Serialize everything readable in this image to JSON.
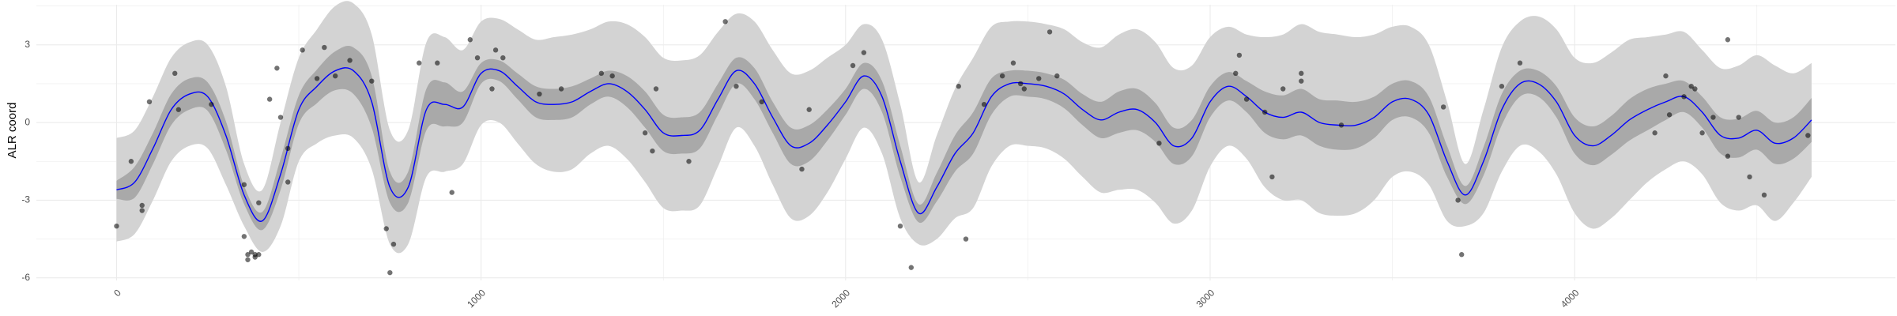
{
  "chart_data": {
    "type": "line",
    "title": "",
    "xlabel": "",
    "ylabel": "ALR coord",
    "xlim": [
      -220,
      4880
    ],
    "ylim": [
      -6.1,
      4.55
    ],
    "grid": true,
    "legend": "none",
    "x_ticks": [
      {
        "value": 0,
        "label": "0"
      },
      {
        "value": 1000,
        "label": "1000"
      },
      {
        "value": 2000,
        "label": "2000"
      },
      {
        "value": 3000,
        "label": "3000"
      },
      {
        "value": 4000,
        "label": "4000"
      }
    ],
    "y_ticks": [
      {
        "value": 3,
        "label": "3"
      },
      {
        "value": 0,
        "label": "0"
      },
      {
        "value": -3,
        "label": "-3"
      },
      {
        "value": -6,
        "label": "-6"
      }
    ],
    "colors": {
      "mean_line": "#0000ff",
      "inner_band": "#a9a9a9",
      "outer_band": "#d3d3d3",
      "points": "#000000",
      "grid": "#ebebeb"
    },
    "series": [
      {
        "kind": "line",
        "x": [
          0,
          50,
          100,
          150,
          200,
          250,
          300,
          350,
          400,
          450,
          500,
          550,
          600,
          650,
          700,
          750,
          800,
          850,
          900,
          950,
          1000,
          1050,
          1100,
          1150,
          1200,
          1250,
          1300,
          1350,
          1400,
          1450,
          1500,
          1550,
          1600,
          1650,
          1700,
          1750,
          1800,
          1850,
          1900,
          1950,
          2000,
          2050,
          2100,
          2150,
          2200,
          2250,
          2300,
          2350,
          2400,
          2450,
          2500,
          2550,
          2600,
          2650,
          2700,
          2750,
          2800,
          2850,
          2900,
          2950,
          3000,
          3050,
          3100,
          3150,
          3200,
          3250,
          3300,
          3350,
          3400,
          3450,
          3500,
          3550,
          3600,
          3650,
          3700,
          3750,
          3800,
          3850,
          3900,
          3950,
          4000,
          4050,
          4100,
          4150,
          4200,
          4250,
          4300,
          4350,
          4400,
          4450,
          4500,
          4550,
          4600,
          4650
        ],
        "values": [
          -2.6,
          -2.3,
          -1.0,
          0.5,
          1.1,
          1.0,
          -0.5,
          -2.8,
          -3.8,
          -2.0,
          0.5,
          1.4,
          2.0,
          2.0,
          0.8,
          -2.5,
          -2.5,
          0.5,
          0.7,
          0.6,
          1.9,
          2.0,
          1.4,
          0.8,
          0.7,
          0.8,
          1.2,
          1.5,
          1.2,
          0.5,
          -0.4,
          -0.5,
          -0.3,
          0.9,
          2.0,
          1.5,
          0.2,
          -0.9,
          -0.8,
          -0.1,
          0.8,
          1.8,
          1.0,
          -1.5,
          -3.5,
          -2.5,
          -1.2,
          -0.4,
          1.0,
          1.5,
          1.5,
          1.4,
          1.1,
          0.5,
          0.1,
          0.4,
          0.5,
          0.0,
          -0.9,
          -0.6,
          0.8,
          1.4,
          1.0,
          0.4,
          0.2,
          0.4,
          0.0,
          -0.1,
          -0.1,
          0.2,
          0.8,
          0.9,
          0.3,
          -1.5,
          -2.8,
          -1.5,
          0.5,
          1.5,
          1.5,
          0.8,
          -0.5,
          -0.9,
          -0.5,
          0.1,
          0.5,
          0.8,
          1.0,
          0.4,
          -0.5,
          -0.6,
          -0.3,
          -0.8,
          -0.6,
          0.1
        ]
      },
      {
        "kind": "band",
        "name": "",
        "lower_offset": [
          -0.35,
          -0.6,
          -0.6,
          -0.6,
          -0.6,
          -0.55,
          -0.55,
          -0.35,
          -0.35,
          -0.6,
          -0.55,
          -0.65,
          -0.75,
          -0.9,
          -1.0,
          -0.6,
          -0.6,
          -0.8,
          -0.85,
          -0.6,
          -0.4,
          -0.4,
          -0.5,
          -0.6,
          -0.6,
          -0.6,
          -0.5,
          -0.5,
          -0.6,
          -0.7,
          -0.7,
          -0.7,
          -0.7,
          -0.6,
          -0.5,
          -0.6,
          -0.6,
          -0.7,
          -0.7,
          -0.6,
          -0.5,
          -0.5,
          -0.6,
          -0.6,
          -0.35,
          -0.55,
          -0.7,
          -0.8,
          -0.7,
          -0.5,
          -0.5,
          -0.5,
          -0.55,
          -0.6,
          -0.7,
          -0.8,
          -0.8,
          -0.75,
          -0.7,
          -0.7,
          -0.6,
          -0.55,
          -0.6,
          -0.8,
          -0.85,
          -0.9,
          -0.9,
          -0.95,
          -0.9,
          -0.8,
          -0.7,
          -0.7,
          -0.7,
          -0.6,
          -0.35,
          -0.55,
          -0.6,
          -0.5,
          -0.5,
          -0.6,
          -0.7,
          -0.75,
          -0.75,
          -0.8,
          -0.8,
          -0.7,
          -0.6,
          -0.6,
          -0.7,
          -0.75,
          -0.75,
          -0.8,
          -0.8,
          -0.85
        ],
        "upper_offset": [
          0.35,
          0.6,
          0.6,
          0.6,
          0.6,
          0.55,
          0.55,
          0.35,
          0.35,
          0.6,
          0.55,
          0.65,
          0.75,
          0.9,
          1.0,
          0.6,
          0.6,
          0.8,
          0.85,
          0.6,
          0.4,
          0.4,
          0.5,
          0.6,
          0.6,
          0.6,
          0.5,
          0.5,
          0.6,
          0.7,
          0.7,
          0.7,
          0.7,
          0.6,
          0.5,
          0.6,
          0.6,
          0.7,
          0.7,
          0.6,
          0.5,
          0.5,
          0.6,
          0.6,
          0.35,
          0.55,
          0.7,
          0.8,
          0.7,
          0.5,
          0.5,
          0.5,
          0.55,
          0.6,
          0.7,
          0.8,
          0.8,
          0.75,
          0.7,
          0.7,
          0.6,
          0.55,
          0.6,
          0.8,
          0.85,
          0.9,
          0.9,
          0.95,
          0.9,
          0.8,
          0.7,
          0.7,
          0.7,
          0.6,
          0.35,
          0.55,
          0.6,
          0.5,
          0.5,
          0.6,
          0.7,
          0.75,
          0.75,
          0.8,
          0.8,
          0.7,
          0.6,
          0.6,
          0.7,
          0.75,
          0.75,
          0.8,
          0.8,
          0.85
        ]
      },
      {
        "kind": "band",
        "name": "",
        "lower_offset": [
          -2.0,
          -2.0,
          -2.0,
          -2.0,
          -2.0,
          -2.0,
          -1.9,
          -1.2,
          -1.2,
          -2.0,
          -2.0,
          -2.2,
          -2.5,
          -2.6,
          -2.6,
          -2.2,
          -2.2,
          -2.6,
          -2.6,
          -2.2,
          -2.0,
          -2.0,
          -2.2,
          -2.4,
          -2.6,
          -2.6,
          -2.4,
          -2.4,
          -2.6,
          -2.8,
          -2.9,
          -2.9,
          -2.9,
          -2.6,
          -2.2,
          -2.4,
          -2.6,
          -2.8,
          -2.8,
          -2.6,
          -2.2,
          -2.0,
          -2.2,
          -2.2,
          -1.2,
          -2.0,
          -2.5,
          -2.9,
          -2.7,
          -2.4,
          -2.4,
          -2.4,
          -2.5,
          -2.6,
          -2.8,
          -3.0,
          -3.1,
          -3.1,
          -3.0,
          -2.8,
          -2.5,
          -2.3,
          -2.4,
          -2.9,
          -3.2,
          -3.4,
          -3.5,
          -3.5,
          -3.4,
          -3.2,
          -2.9,
          -2.8,
          -2.7,
          -2.3,
          -1.2,
          -2.0,
          -2.4,
          -2.4,
          -2.6,
          -2.8,
          -3.0,
          -3.2,
          -3.2,
          -3.1,
          -2.8,
          -2.6,
          -2.5,
          -2.4,
          -2.6,
          -2.8,
          -2.9,
          -3.0,
          -2.5,
          -2.2
        ],
        "upper_offset": [
          2.0,
          2.0,
          2.0,
          2.0,
          2.0,
          2.0,
          1.9,
          1.2,
          1.2,
          2.0,
          2.0,
          2.2,
          2.5,
          2.6,
          2.6,
          2.2,
          2.2,
          2.6,
          2.6,
          2.2,
          2.0,
          2.0,
          2.2,
          2.4,
          2.6,
          2.6,
          2.4,
          2.4,
          2.6,
          2.8,
          2.9,
          2.9,
          2.9,
          2.6,
          2.2,
          2.4,
          2.6,
          2.8,
          2.8,
          2.6,
          2.2,
          2.0,
          2.2,
          2.2,
          1.2,
          2.0,
          2.5,
          2.9,
          2.7,
          2.4,
          2.4,
          2.4,
          2.5,
          2.6,
          2.8,
          3.0,
          3.1,
          3.1,
          3.0,
          2.8,
          2.5,
          2.3,
          2.4,
          2.9,
          3.2,
          3.4,
          3.5,
          3.5,
          3.4,
          3.2,
          2.9,
          2.8,
          2.7,
          2.3,
          1.2,
          2.0,
          2.4,
          2.4,
          2.6,
          2.8,
          3.0,
          3.2,
          3.2,
          3.1,
          2.8,
          2.6,
          2.5,
          2.4,
          2.6,
          2.8,
          2.9,
          3.0,
          2.5,
          2.2
        ]
      },
      {
        "kind": "scatter",
        "points": [
          [
            0,
            -4.0
          ],
          [
            40,
            -1.5
          ],
          [
            70,
            -3.4
          ],
          [
            70,
            -3.2
          ],
          [
            90,
            0.8
          ],
          [
            160,
            1.9
          ],
          [
            170,
            0.5
          ],
          [
            260,
            0.7
          ],
          [
            350,
            -2.4
          ],
          [
            350,
            -4.4
          ],
          [
            360,
            -5.3
          ],
          [
            360,
            -5.1
          ],
          [
            370,
            -5.0
          ],
          [
            380,
            -5.2
          ],
          [
            380,
            -5.1
          ],
          [
            390,
            -5.1
          ],
          [
            390,
            -3.1
          ],
          [
            420,
            0.9
          ],
          [
            440,
            2.1
          ],
          [
            450,
            0.2
          ],
          [
            470,
            -1.0
          ],
          [
            470,
            -2.3
          ],
          [
            510,
            2.8
          ],
          [
            550,
            1.7
          ],
          [
            570,
            2.9
          ],
          [
            600,
            1.8
          ],
          [
            640,
            2.4
          ],
          [
            700,
            1.6
          ],
          [
            740,
            -4.1
          ],
          [
            750,
            -5.8
          ],
          [
            760,
            -4.7
          ],
          [
            830,
            2.3
          ],
          [
            880,
            2.3
          ],
          [
            920,
            -2.7
          ],
          [
            970,
            3.2
          ],
          [
            990,
            2.5
          ],
          [
            1030,
            1.3
          ],
          [
            1040,
            2.8
          ],
          [
            1060,
            2.5
          ],
          [
            1160,
            1.1
          ],
          [
            1220,
            1.3
          ],
          [
            1330,
            1.9
          ],
          [
            1360,
            1.8
          ],
          [
            1450,
            -0.4
          ],
          [
            1470,
            -1.1
          ],
          [
            1480,
            1.3
          ],
          [
            1570,
            -1.5
          ],
          [
            1670,
            3.9
          ],
          [
            1700,
            1.4
          ],
          [
            1770,
            0.8
          ],
          [
            1880,
            -1.8
          ],
          [
            1900,
            0.5
          ],
          [
            2020,
            2.2
          ],
          [
            2050,
            2.7
          ],
          [
            2150,
            -4.0
          ],
          [
            2180,
            -5.6
          ],
          [
            2310,
            1.4
          ],
          [
            2330,
            -4.5
          ],
          [
            2380,
            0.7
          ],
          [
            2430,
            1.8
          ],
          [
            2460,
            2.3
          ],
          [
            2480,
            1.5
          ],
          [
            2490,
            1.3
          ],
          [
            2530,
            1.7
          ],
          [
            2560,
            3.5
          ],
          [
            2580,
            1.8
          ],
          [
            2860,
            -0.8
          ],
          [
            3070,
            1.9
          ],
          [
            3080,
            2.6
          ],
          [
            3100,
            0.9
          ],
          [
            3150,
            0.4
          ],
          [
            3170,
            -2.1
          ],
          [
            3200,
            1.3
          ],
          [
            3250,
            1.9
          ],
          [
            3250,
            1.6
          ],
          [
            3360,
            -0.1
          ],
          [
            3640,
            0.6
          ],
          [
            3680,
            -3.0
          ],
          [
            3690,
            -5.1
          ],
          [
            3800,
            1.4
          ],
          [
            3850,
            2.3
          ],
          [
            4220,
            -0.4
          ],
          [
            4250,
            1.8
          ],
          [
            4260,
            0.3
          ],
          [
            4300,
            1.0
          ],
          [
            4320,
            1.4
          ],
          [
            4330,
            1.3
          ],
          [
            4350,
            -0.4
          ],
          [
            4380,
            0.2
          ],
          [
            4420,
            3.2
          ],
          [
            4420,
            -1.3
          ],
          [
            4450,
            0.2
          ],
          [
            4480,
            -2.1
          ],
          [
            4520,
            -2.8
          ],
          [
            4640,
            -0.5
          ]
        ]
      }
    ]
  }
}
